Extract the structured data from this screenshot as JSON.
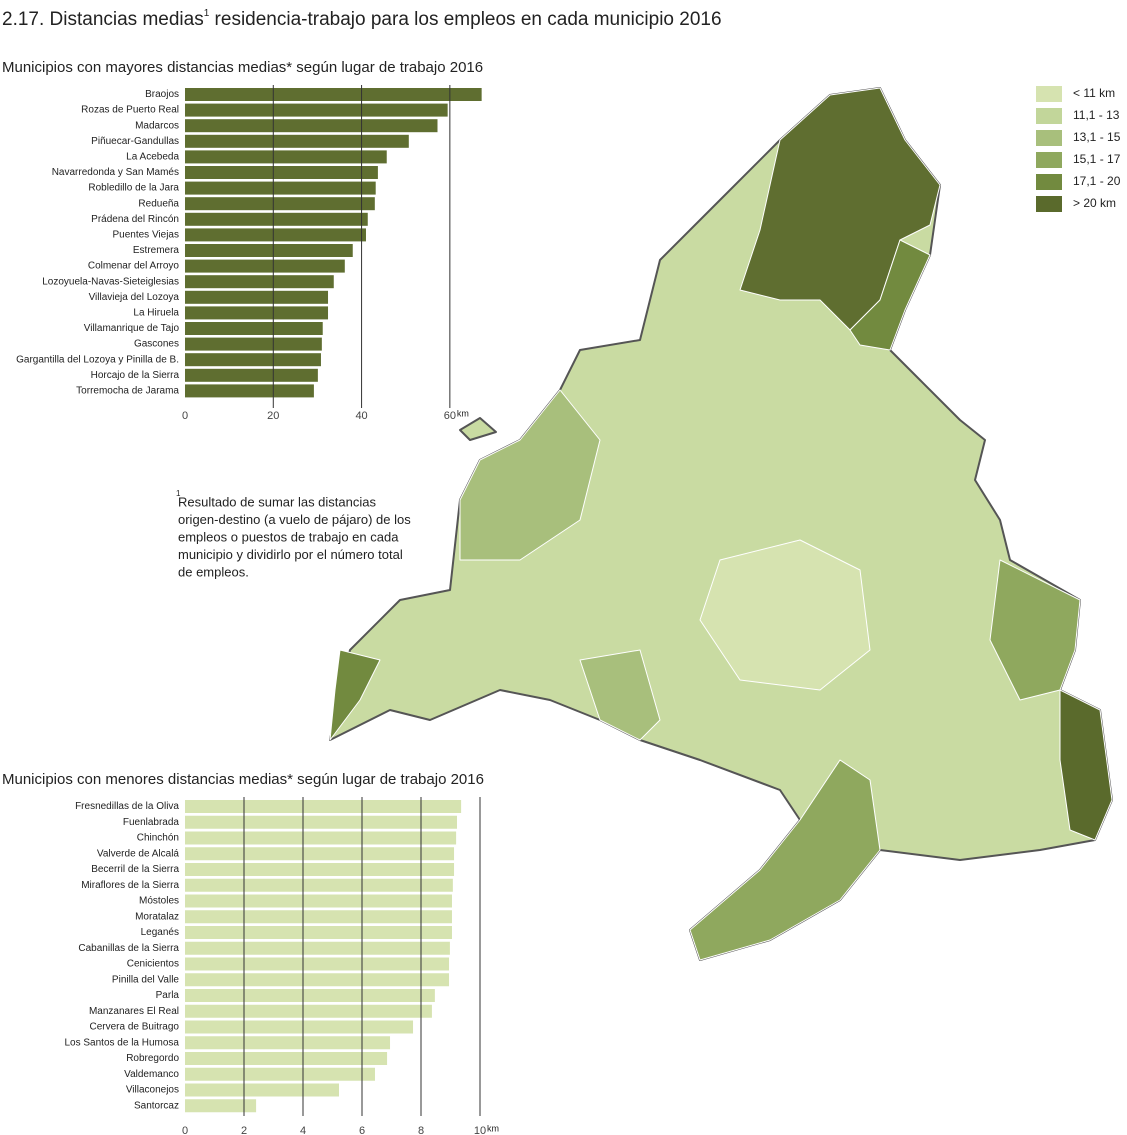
{
  "title": "2.17. Distancias medias",
  "title_note_mark": "1",
  "title_end": " residencia-trabajo para los empleos en cada municipio 2016",
  "legend": {
    "items": [
      {
        "label": "< 11 km",
        "color": "#d6e3b0"
      },
      {
        "label": "11,1 - 13",
        "color": "#c2d69a"
      },
      {
        "label": "13,1 - 15",
        "color": "#a8bf7c"
      },
      {
        "label": "15,1 - 17",
        "color": "#8fa85e"
      },
      {
        "label": "17,1 - 20",
        "color": "#728a3f"
      },
      {
        "label": "> 20 km",
        "color": "#5a6a2c"
      }
    ]
  },
  "footnote": {
    "mark": "1",
    "lines": [
      "Resultado de sumar las distancias",
      "origen-destino (a vuelo de pájaro) de los",
      "empleos o puestos de trabajo en cada",
      "municipio y dividirlo por el número total",
      "de empleos."
    ]
  },
  "chart_data": [
    {
      "type": "bar",
      "orientation": "horizontal",
      "title": "Municipios con mayores distancias medias* según lugar de trabajo 2016",
      "categories": [
        "Braojos",
        "Rozas de Puerto Real",
        "Madarcos",
        "Piñuecar-Gandullas",
        "La Acebeda",
        "Navarredonda y San Mamés",
        "Robledillo de la Jara",
        "Redueña",
        "Prádena del Rincón",
        "Puentes Viejas",
        "Estremera",
        "Colmenar del Arroyo",
        "Lozoyuela-Navas-Sieteiglesias",
        "Villavieja del Lozoya",
        "La Hiruela",
        "Villamanrique de Tajo",
        "Gascones",
        "Gargantilla del Lozoya y Pinilla de B.",
        "Horcajo de la Sierra",
        "Torremocha de Jarama"
      ],
      "values": [
        67.2,
        59.5,
        57.2,
        50.7,
        45.7,
        43.7,
        43.2,
        43,
        41.4,
        41,
        38,
        36.2,
        33.7,
        32.4,
        32.4,
        31.2,
        31,
        30.8,
        30.1,
        29.2
      ],
      "color": "#5f6e30",
      "xlim": [
        0,
        70
      ],
      "xticks": [
        0,
        20,
        40,
        60
      ],
      "x_unit": "km",
      "grid": true
    },
    {
      "type": "bar",
      "orientation": "horizontal",
      "title": "Municipios con menores distancias medias* según lugar de trabajo 2016",
      "categories": [
        "Fresnedillas de la Oliva",
        "Fuenlabrada",
        "Chinchón",
        "Valverde de Alcalá",
        "Becerril de la Sierra",
        "Miraflores de la Sierra",
        "Móstoles",
        "Moratalaz",
        "Leganés",
        "Cabanillas de la Sierra",
        "Cenicientos",
        "Pinilla del Valle",
        "Parla",
        "Manzanares El Real",
        "Cervera de Buitrago",
        "Los Santos de la Humosa",
        "Robregordo",
        "Valdemanco",
        "Villaconejos",
        "Santorcaz"
      ],
      "values": [
        9.36,
        9.22,
        9.19,
        9.12,
        9.12,
        9.08,
        9.05,
        9.05,
        9.05,
        8.98,
        8.95,
        8.95,
        8.47,
        8.37,
        7.73,
        6.95,
        6.85,
        6.44,
        5.22,
        2.41
      ],
      "color": "#d6e3b0",
      "xlim": [
        0,
        10
      ],
      "xticks": [
        0,
        2,
        4,
        6,
        8,
        10
      ],
      "x_unit": "km",
      "grid": true
    }
  ]
}
